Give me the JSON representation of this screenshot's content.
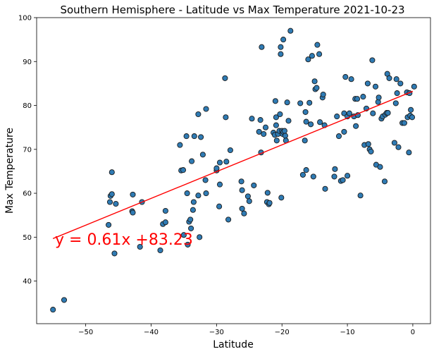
{
  "chart_data": {
    "type": "scatter",
    "title": "Southern Hemisphere - Latitude vs Max Temperature 2021-10-23",
    "xlabel": "Latitude",
    "ylabel": "Max Temperature",
    "xlim": [
      -57.5,
      2.7
    ],
    "ylim": [
      30.3,
      100
    ],
    "xticks": [
      -50,
      -40,
      -30,
      -20,
      -10,
      0
    ],
    "xtick_labels": [
      "−50",
      "−40",
      "−30",
      "−20",
      "−10",
      "0"
    ],
    "yticks": [
      40,
      50,
      60,
      70,
      80,
      90,
      100
    ],
    "ytick_labels": [
      "40",
      "50",
      "60",
      "70",
      "80",
      "90",
      "100"
    ],
    "grid": false,
    "regression": {
      "slope": 0.61,
      "intercept": 83.23,
      "x_start": -55,
      "x_end": 0,
      "equation_label": "y = 0.61x +83.23",
      "color": "#ff0000"
    },
    "marker_color": "#2f7bb4",
    "points": [
      [
        -55.0,
        33.5
      ],
      [
        -53.3,
        35.7
      ],
      [
        -46.5,
        52.8
      ],
      [
        -46.3,
        58.0
      ],
      [
        -46.2,
        59.4
      ],
      [
        -46.0,
        59.8
      ],
      [
        -46.0,
        64.8
      ],
      [
        -45.6,
        46.3
      ],
      [
        -45.4,
        57.6
      ],
      [
        -42.9,
        55.9
      ],
      [
        -42.8,
        55.6
      ],
      [
        -42.8,
        59.7
      ],
      [
        -41.7,
        47.8
      ],
      [
        -41.4,
        58.0
      ],
      [
        -38.6,
        47.0
      ],
      [
        -38.2,
        53.0
      ],
      [
        -37.8,
        53.4
      ],
      [
        -37.8,
        56.0
      ],
      [
        -35.6,
        71.0
      ],
      [
        -35.4,
        65.2
      ],
      [
        -35.1,
        65.3
      ],
      [
        -35.0,
        50.5
      ],
      [
        -34.5,
        60.0
      ],
      [
        -34.6,
        73.0
      ],
      [
        -34.4,
        48.3
      ],
      [
        -34.2,
        53.5
      ],
      [
        -34.0,
        54.0
      ],
      [
        -33.9,
        52.0
      ],
      [
        -33.8,
        67.3
      ],
      [
        -33.6,
        56.2
      ],
      [
        -33.5,
        58.0
      ],
      [
        -33.4,
        73.0
      ],
      [
        -32.8,
        78.0
      ],
      [
        -32.8,
        59.5
      ],
      [
        -32.6,
        50.0
      ],
      [
        -32.4,
        72.8
      ],
      [
        -32.1,
        68.8
      ],
      [
        -31.7,
        63.0
      ],
      [
        -31.6,
        60.0
      ],
      [
        -31.6,
        79.2
      ],
      [
        -30.0,
        65.2
      ],
      [
        -30.0,
        65.7
      ],
      [
        -29.6,
        57.0
      ],
      [
        -29.5,
        62.0
      ],
      [
        -29.5,
        67.0
      ],
      [
        -28.7,
        86.2
      ],
      [
        -28.6,
        77.3
      ],
      [
        -28.5,
        67.2
      ],
      [
        -28.2,
        54.0
      ],
      [
        -27.9,
        69.8
      ],
      [
        -26.2,
        62.7
      ],
      [
        -26.1,
        60.7
      ],
      [
        -26.1,
        56.5
      ],
      [
        -25.8,
        55.4
      ],
      [
        -25.2,
        59.3
      ],
      [
        -25.0,
        58.2
      ],
      [
        -24.6,
        77.0
      ],
      [
        -24.3,
        61.8
      ],
      [
        -23.5,
        74.0
      ],
      [
        -23.3,
        76.7
      ],
      [
        -23.2,
        69.3
      ],
      [
        -23.1,
        93.3
      ],
      [
        -22.8,
        73.5
      ],
      [
        -22.5,
        75.0
      ],
      [
        -22.3,
        58.0
      ],
      [
        -22.2,
        60.1
      ],
      [
        -22.0,
        57.5
      ],
      [
        -21.9,
        57.8
      ],
      [
        -21.3,
        73.8
      ],
      [
        -21.1,
        73.3
      ],
      [
        -21.0,
        81.0
      ],
      [
        -20.9,
        75.5
      ],
      [
        -20.9,
        77.3
      ],
      [
        -20.8,
        72.0
      ],
      [
        -20.6,
        73.5
      ],
      [
        -20.4,
        74.2
      ],
      [
        -20.3,
        78.0
      ],
      [
        -20.2,
        91.7
      ],
      [
        -20.2,
        93.3
      ],
      [
        -20.1,
        59.0
      ],
      [
        -20.0,
        74.2
      ],
      [
        -19.9,
        73.5
      ],
      [
        -19.8,
        95.0
      ],
      [
        -19.8,
        74.0
      ],
      [
        -19.6,
        74.2
      ],
      [
        -19.5,
        73.1
      ],
      [
        -19.4,
        72.0
      ],
      [
        -19.2,
        80.7
      ],
      [
        -19.0,
        76.5
      ],
      [
        -18.7,
        97.0
      ],
      [
        -17.2,
        80.5
      ],
      [
        -16.8,
        64.2
      ],
      [
        -16.5,
        72.0
      ],
      [
        -16.4,
        78.5
      ],
      [
        -16.3,
        65.3
      ],
      [
        -16.3,
        76.3
      ],
      [
        -16.0,
        90.5
      ],
      [
        -15.8,
        80.6
      ],
      [
        -15.6,
        75.7
      ],
      [
        -15.4,
        91.3
      ],
      [
        -15.2,
        63.8
      ],
      [
        -15.0,
        85.5
      ],
      [
        -14.9,
        83.7
      ],
      [
        -14.7,
        84.0
      ],
      [
        -14.6,
        93.8
      ],
      [
        -14.3,
        91.7
      ],
      [
        -14.2,
        76.2
      ],
      [
        -13.8,
        81.8
      ],
      [
        -13.7,
        82.5
      ],
      [
        -13.5,
        75.5
      ],
      [
        -13.4,
        61.0
      ],
      [
        -12.0,
        63.8
      ],
      [
        -11.9,
        65.5
      ],
      [
        -11.6,
        77.5
      ],
      [
        -11.3,
        73.0
      ],
      [
        -11.0,
        62.8
      ],
      [
        -10.7,
        63.0
      ],
      [
        -10.5,
        78.2
      ],
      [
        -10.5,
        74.0
      ],
      [
        -10.3,
        86.5
      ],
      [
        -10.0,
        64.0
      ],
      [
        -10.0,
        77.5
      ],
      [
        -9.7,
        78.2
      ],
      [
        -9.4,
        86.0
      ],
      [
        -9.0,
        77.5
      ],
      [
        -8.8,
        81.5
      ],
      [
        -8.7,
        75.3
      ],
      [
        -8.5,
        81.5
      ],
      [
        -8.4,
        77.8
      ],
      [
        -8.0,
        59.5
      ],
      [
        -7.6,
        82.0
      ],
      [
        -7.4,
        71.0
      ],
      [
        -7.1,
        79.3
      ],
      [
        -6.9,
        85.0
      ],
      [
        -6.8,
        71.2
      ],
      [
        -6.6,
        70.0
      ],
      [
        -6.4,
        69.5
      ],
      [
        -6.2,
        90.3
      ],
      [
        -6.1,
        78.2
      ],
      [
        -5.7,
        84.3
      ],
      [
        -5.6,
        66.5
      ],
      [
        -5.3,
        80.8
      ],
      [
        -5.2,
        81.8
      ],
      [
        -5.0,
        66.0
      ],
      [
        -4.8,
        77.0
      ],
      [
        -4.6,
        77.5
      ],
      [
        -4.3,
        62.7
      ],
      [
        -4.2,
        77.9
      ],
      [
        -4.0,
        78.3
      ],
      [
        -3.9,
        87.2
      ],
      [
        -3.8,
        78.3
      ],
      [
        -3.6,
        86.2
      ],
      [
        -2.8,
        71.5
      ],
      [
        -2.6,
        80.5
      ],
      [
        -2.5,
        86.0
      ],
      [
        -2.4,
        82.8
      ],
      [
        -2.2,
        70.5
      ],
      [
        -1.9,
        85.0
      ],
      [
        -1.6,
        76.0
      ],
      [
        -1.3,
        76.0
      ],
      [
        -0.9,
        83.0
      ],
      [
        -0.8,
        77.3
      ],
      [
        -0.6,
        69.3
      ],
      [
        -0.5,
        82.8
      ],
      [
        -0.4,
        77.7
      ],
      [
        -0.3,
        79.0
      ],
      [
        -0.1,
        77.3
      ],
      [
        0.2,
        84.3
      ]
    ]
  }
}
